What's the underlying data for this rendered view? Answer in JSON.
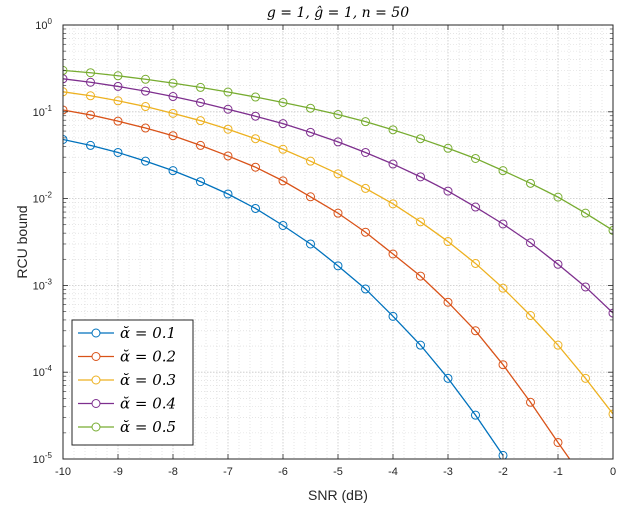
{
  "chart_data": {
    "type": "line",
    "title": "g = 1, ĝ = 1, n = 50",
    "xlabel": "SNR (dB)",
    "ylabel": "RCU bound",
    "xlim": [
      -10,
      0
    ],
    "ylim": [
      1e-05,
      1
    ],
    "yscale": "log",
    "grid": true,
    "minor_grid": true,
    "legend_position": "bottom-left",
    "x_ticks": [
      -10,
      -9,
      -8,
      -7,
      -6,
      -5,
      -4,
      -3,
      -2,
      -1,
      0
    ],
    "x_tick_labels": [
      "-10",
      "-9",
      "-8",
      "-7",
      "-6",
      "-5",
      "-4",
      "-3",
      "-2",
      "-1",
      "0"
    ],
    "y_ticks": [
      {
        "value": 1.0,
        "base": "10",
        "exp": "0"
      },
      {
        "value": 0.1,
        "base": "10",
        "exp": "-1"
      },
      {
        "value": 0.01,
        "base": "10",
        "exp": "-2"
      },
      {
        "value": 0.001,
        "base": "10",
        "exp": "-3"
      },
      {
        "value": 0.0001,
        "base": "10",
        "exp": "-4"
      },
      {
        "value": 1e-05,
        "base": "10",
        "exp": "-5"
      }
    ],
    "x": [
      -10,
      -9.5,
      -9,
      -8.5,
      -8,
      -7.5,
      -7,
      -6.5,
      -6,
      -5.5,
      -5,
      -4.5,
      -4,
      -3.5,
      -3,
      -2.5,
      -2,
      -1.5,
      -1,
      -0.5,
      0
    ],
    "series": [
      {
        "name": "ᾰ = 0.1",
        "color": "#0072BD",
        "values": [
          0.048,
          0.041,
          0.034,
          0.027,
          0.021,
          0.0157,
          0.0113,
          0.0077,
          0.0049,
          0.003,
          0.00168,
          0.00091,
          0.00044,
          0.000205,
          8.5e-05,
          3.2e-05,
          1.1e-05,
          null,
          null,
          null,
          null
        ]
      },
      {
        "name": "ᾰ = 0.2",
        "color": "#D95319",
        "values": [
          0.105,
          0.092,
          0.078,
          0.065,
          0.053,
          0.041,
          0.031,
          0.023,
          0.016,
          0.0105,
          0.0068,
          0.0041,
          0.0023,
          0.00128,
          0.00064,
          0.0003,
          0.000122,
          4.5e-05,
          1.55e-05,
          5.5e-06,
          null
        ]
      },
      {
        "name": "ᾰ = 0.3",
        "color": "#EDB120",
        "values": [
          0.17,
          0.153,
          0.134,
          0.115,
          0.096,
          0.079,
          0.063,
          0.049,
          0.037,
          0.027,
          0.0193,
          0.0131,
          0.0087,
          0.0054,
          0.0032,
          0.00179,
          0.00093,
          0.00045,
          0.000205,
          8.5e-05,
          3.3e-05
        ]
      },
      {
        "name": "ᾰ = 0.4",
        "color": "#7E2F8E",
        "values": [
          0.24,
          0.219,
          0.196,
          0.173,
          0.15,
          0.128,
          0.107,
          0.089,
          0.073,
          0.058,
          0.045,
          0.034,
          0.025,
          0.0178,
          0.0122,
          0.008,
          0.0051,
          0.0031,
          0.00175,
          0.00096,
          0.00048
        ]
      },
      {
        "name": "ᾰ = 0.5",
        "color": "#77AC30",
        "values": [
          0.3,
          0.282,
          0.26,
          0.237,
          0.214,
          0.191,
          0.169,
          0.148,
          0.128,
          0.11,
          0.093,
          0.077,
          0.062,
          0.049,
          0.038,
          0.029,
          0.021,
          0.015,
          0.0104,
          0.0068,
          0.0043
        ]
      }
    ]
  }
}
